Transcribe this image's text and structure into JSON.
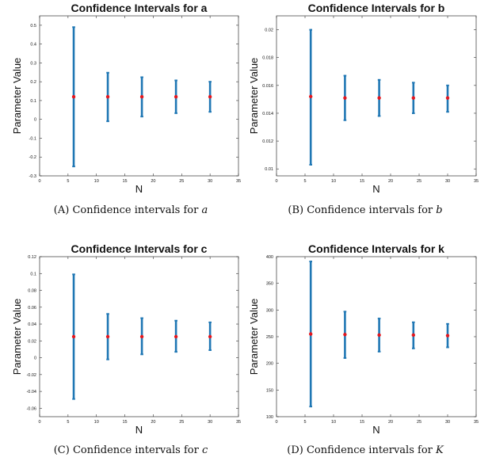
{
  "figure": {
    "captions": [
      {
        "label": "(A)",
        "text": "Confidence intervals for",
        "symbol": "a"
      },
      {
        "label": "(B)",
        "text": "Confidence intervals for",
        "symbol": "b"
      },
      {
        "label": "(C)",
        "text": "Confidence intervals for",
        "symbol": "c"
      },
      {
        "label": "(D)",
        "text": "Confidence intervals for",
        "symbol": "K"
      }
    ]
  },
  "colors": {
    "errorbar": "#1f77b4",
    "point": "#e4161d",
    "axis": "#333333",
    "text": "#111111"
  },
  "chart_data": [
    {
      "type": "errorbar",
      "title": "Confidence Intervals for a",
      "xlabel": "N",
      "ylabel": "Parameter Value",
      "xlim": [
        0,
        35
      ],
      "ylim": [
        -0.3,
        0.55
      ],
      "xticks": [
        "0",
        "5",
        "10",
        "15",
        "20",
        "25",
        "30",
        "35"
      ],
      "yticks": [
        "-0.3",
        "-0.2",
        "-0.1",
        "0",
        "0.1",
        "0.2",
        "0.3",
        "0.4",
        "0.5"
      ],
      "x": [
        6,
        12,
        18,
        24,
        30
      ],
      "center": [
        0.12,
        0.12,
        0.12,
        0.12,
        0.12
      ],
      "lower": [
        -0.25,
        -0.01,
        0.015,
        0.033,
        0.04
      ],
      "upper": [
        0.49,
        0.248,
        0.224,
        0.207,
        0.2
      ]
    },
    {
      "type": "errorbar",
      "title": "Confidence Intervals for b",
      "xlabel": "N",
      "ylabel": "Parameter Value",
      "xlim": [
        0,
        35
      ],
      "ylim": [
        0.0095,
        0.021
      ],
      "xticks": [
        "0",
        "5",
        "10",
        "15",
        "20",
        "25",
        "30",
        "35"
      ],
      "yticks": [
        "0.01",
        "0.012",
        "0.014",
        "0.016",
        "0.018",
        "0.02"
      ],
      "x": [
        6,
        12,
        18,
        24,
        30
      ],
      "center": [
        0.0152,
        0.0151,
        0.0151,
        0.0151,
        0.0151
      ],
      "lower": [
        0.0103,
        0.0135,
        0.0138,
        0.014,
        0.0141
      ],
      "upper": [
        0.02,
        0.0167,
        0.0164,
        0.0162,
        0.016
      ]
    },
    {
      "type": "errorbar",
      "title": "Confidence Intervals for c",
      "xlabel": "N",
      "ylabel": "Parameter Value",
      "xlim": [
        0,
        35
      ],
      "ylim": [
        -0.07,
        0.12
      ],
      "xticks": [
        "0",
        "5",
        "10",
        "15",
        "20",
        "25",
        "30",
        "35"
      ],
      "yticks": [
        "-0.06",
        "-0.04",
        "-0.02",
        "0",
        "0.02",
        "0.04",
        "0.06",
        "0.08",
        "0.1",
        "0.12"
      ],
      "x": [
        6,
        12,
        18,
        24,
        30
      ],
      "center": [
        0.025,
        0.025,
        0.025,
        0.025,
        0.025
      ],
      "lower": [
        -0.049,
        -0.002,
        0.004,
        0.007,
        0.009
      ],
      "upper": [
        0.099,
        0.052,
        0.047,
        0.044,
        0.042
      ]
    },
    {
      "type": "errorbar",
      "title": "Confidence Intervals for k",
      "xlabel": "N",
      "ylabel": "Parameter Value",
      "xlim": [
        0,
        35
      ],
      "ylim": [
        100,
        400
      ],
      "xticks": [
        "0",
        "5",
        "10",
        "15",
        "20",
        "25",
        "30",
        "35"
      ],
      "yticks": [
        "100",
        "150",
        "200",
        "250",
        "300",
        "350",
        "400"
      ],
      "x": [
        6,
        12,
        18,
        24,
        30
      ],
      "center": [
        255,
        254,
        253,
        253,
        252
      ],
      "lower": [
        119,
        210,
        222,
        228,
        230
      ],
      "upper": [
        391,
        297,
        284,
        277,
        274
      ]
    }
  ]
}
